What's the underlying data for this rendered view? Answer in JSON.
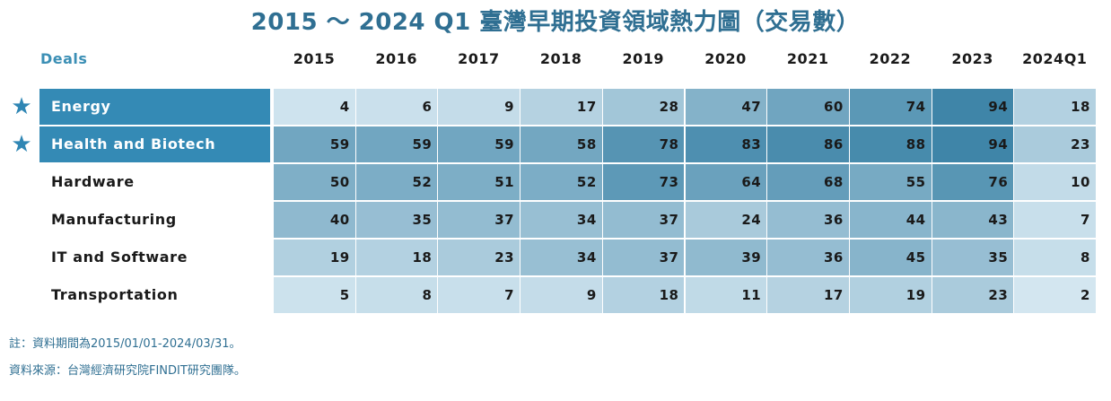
{
  "title": "2015 ～ 2024 Q1 臺灣早期投資領域熱力圖（交易數）",
  "deals_label": "Deals",
  "star_glyph": "★",
  "footnotes": {
    "note": "註：資料期間為2015/01/01-2024/03/31。",
    "source": "資料來源：台灣經濟研究院FINDIT研究團隊。"
  },
  "colors": {
    "accent": "#348ab5",
    "title": "#2f6f92",
    "label_text": "#1a1a1a",
    "highlight_text": "#ffffff"
  },
  "chart_data": {
    "type": "heatmap",
    "title": "2015 ～ 2024 Q1 臺灣早期投資領域熱力圖（交易數）",
    "corner_label": "Deals",
    "columns": [
      "2015",
      "2016",
      "2017",
      "2018",
      "2019",
      "2020",
      "2021",
      "2022",
      "2023",
      "2024Q1"
    ],
    "rows": [
      {
        "name": "Energy",
        "starred": true,
        "highlighted": true,
        "values": [
          4,
          6,
          9,
          17,
          28,
          47,
          60,
          74,
          94,
          18
        ]
      },
      {
        "name": "Health and Biotech",
        "starred": true,
        "highlighted": true,
        "values": [
          59,
          59,
          59,
          58,
          78,
          83,
          86,
          88,
          94,
          23
        ]
      },
      {
        "name": "Hardware",
        "starred": false,
        "highlighted": false,
        "values": [
          50,
          52,
          51,
          52,
          73,
          64,
          68,
          55,
          76,
          10
        ]
      },
      {
        "name": "Manufacturing",
        "starred": false,
        "highlighted": false,
        "values": [
          40,
          35,
          37,
          34,
          37,
          24,
          36,
          44,
          43,
          7
        ]
      },
      {
        "name": "IT and Software",
        "starred": false,
        "highlighted": false,
        "values": [
          19,
          18,
          23,
          34,
          37,
          39,
          36,
          45,
          35,
          8
        ]
      },
      {
        "name": "Transportation",
        "starred": false,
        "highlighted": false,
        "values": [
          5,
          8,
          7,
          9,
          18,
          11,
          17,
          19,
          23,
          2
        ]
      }
    ],
    "color_scale": {
      "low": "#d9eaf3",
      "high": "#3f85a8"
    }
  }
}
